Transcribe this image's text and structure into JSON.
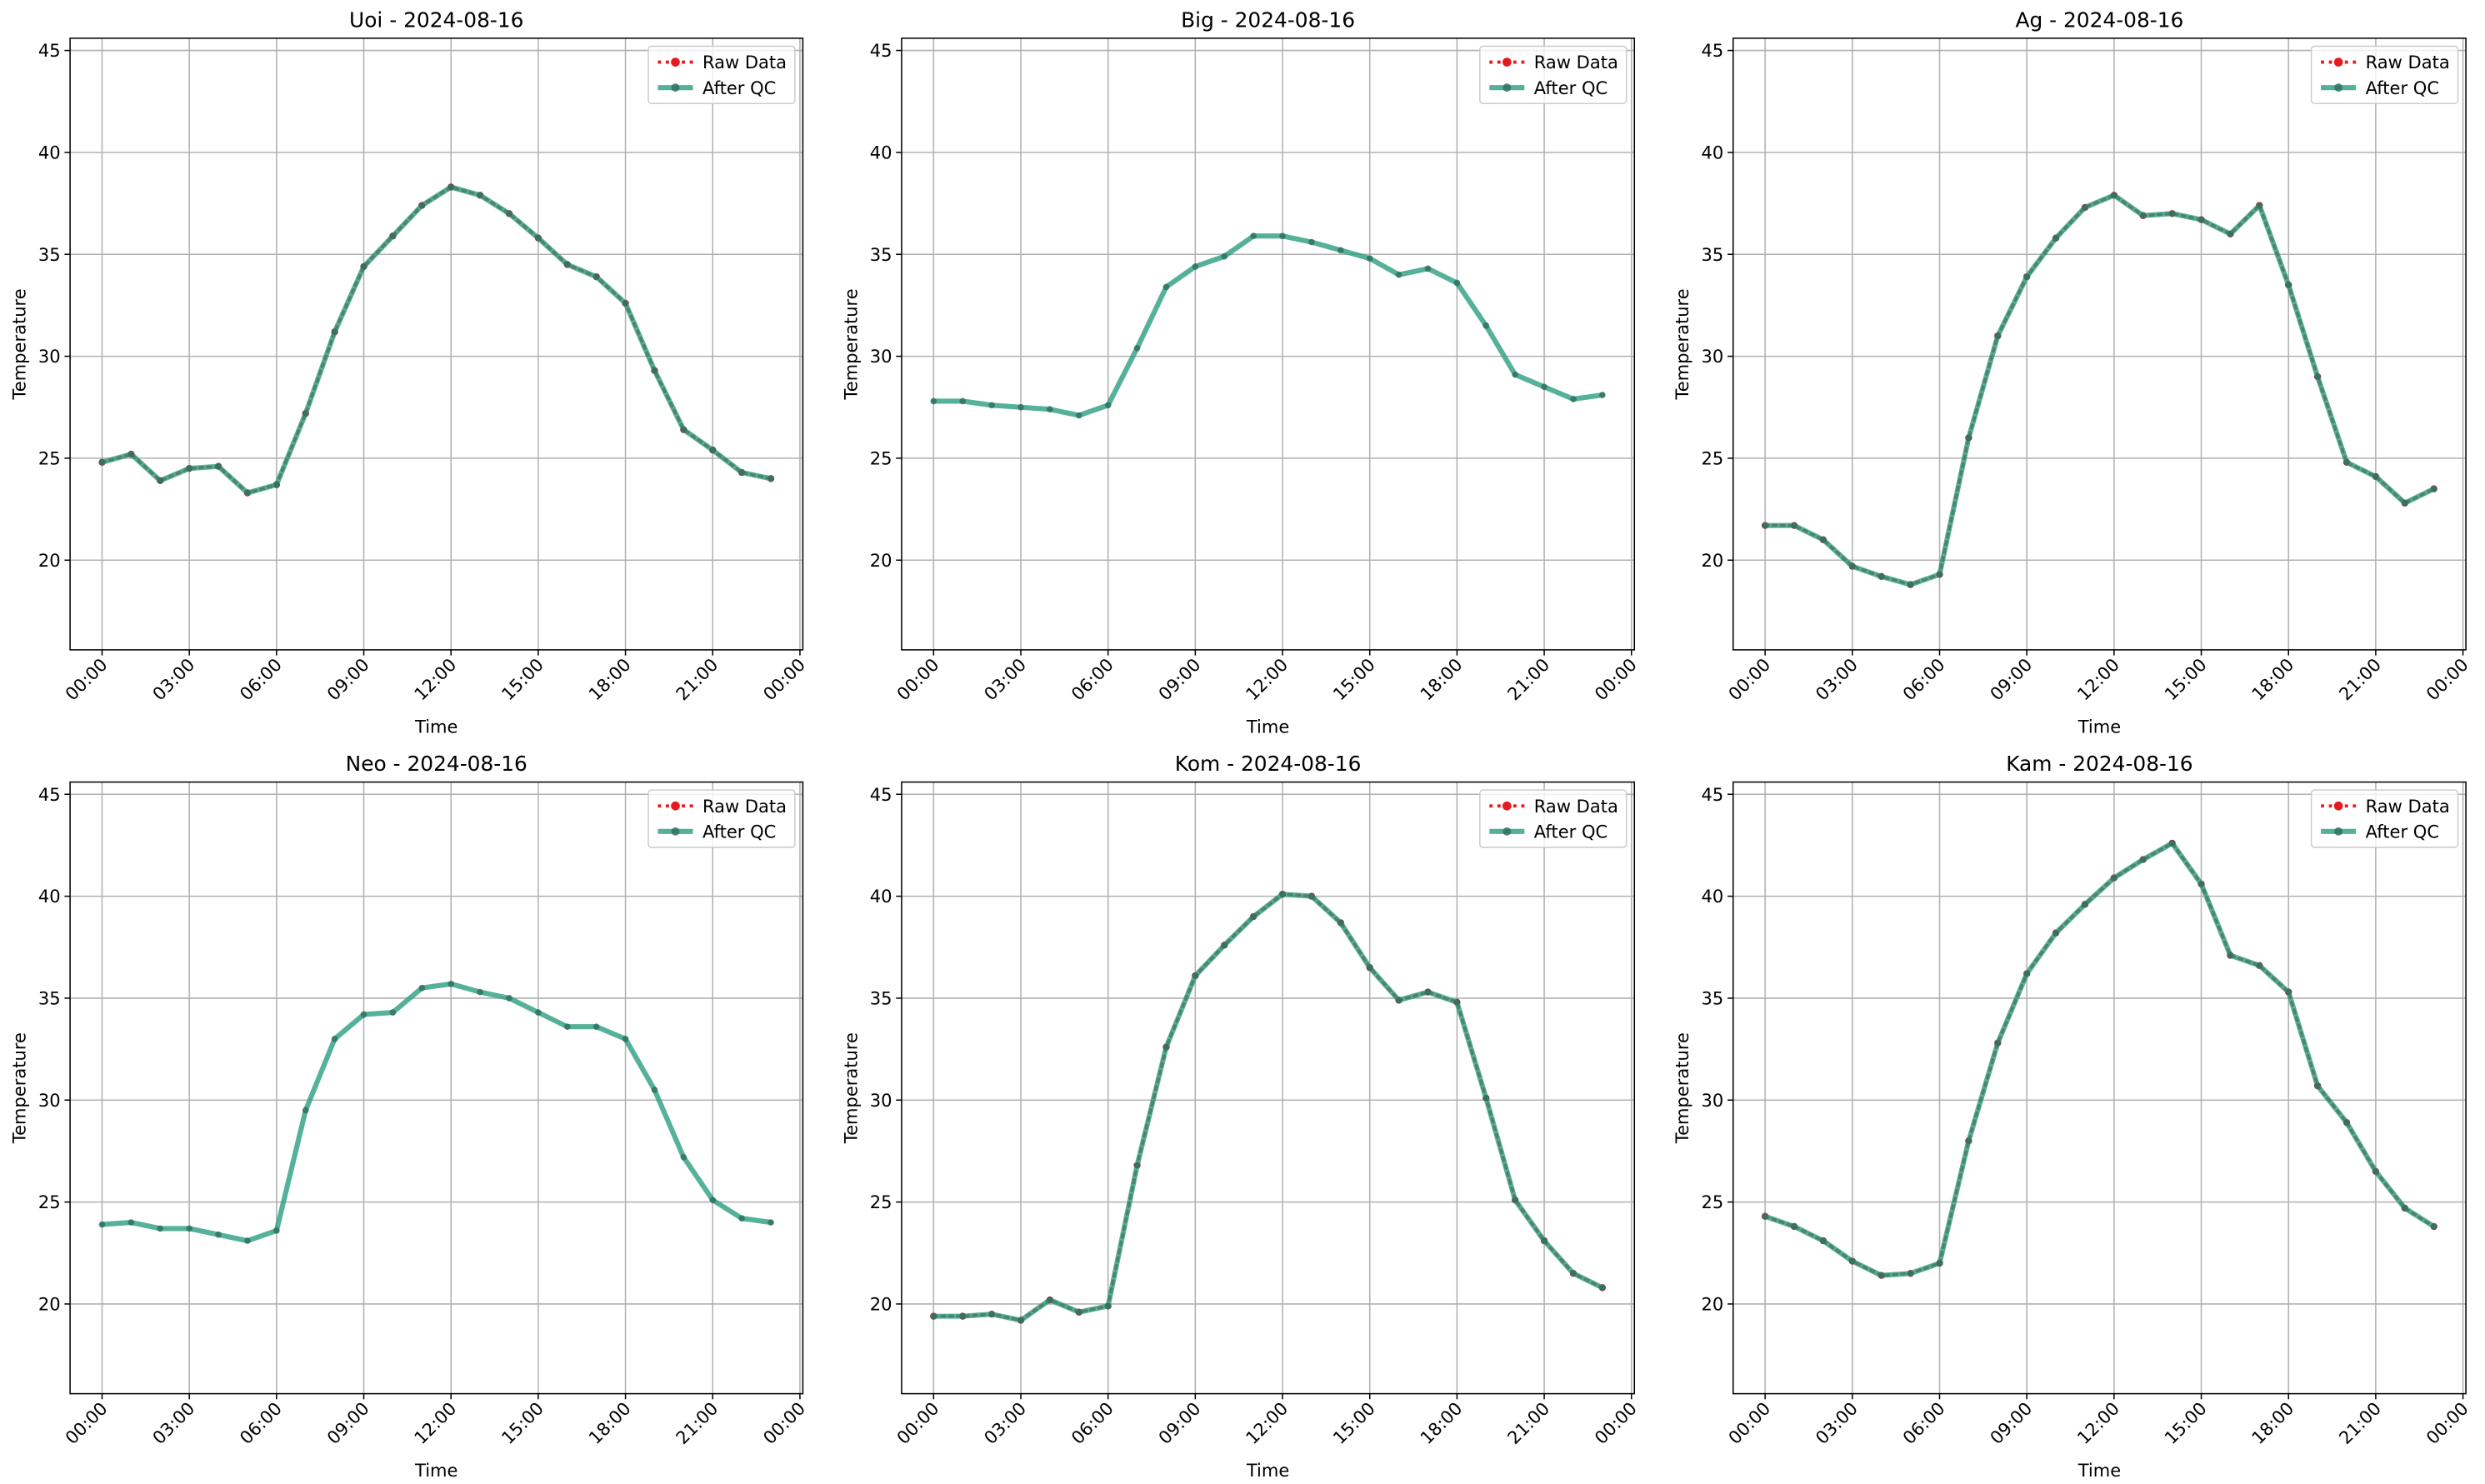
{
  "chart_data": [
    {
      "type": "line",
      "title": "Uoi - 2024-08-16",
      "xlabel": "Time",
      "ylabel": "Temperature",
      "x": [
        0,
        1,
        2,
        3,
        4,
        5,
        6,
        7,
        8,
        9,
        10,
        11,
        12,
        13,
        14,
        15,
        16,
        17,
        18,
        19,
        20,
        21,
        22,
        23
      ],
      "series": [
        {
          "name": "Raw Data",
          "color": "#e41a1c",
          "values": [
            24.8,
            25.2,
            23.9,
            24.5,
            24.6,
            23.3,
            23.7,
            27.2,
            31.2,
            34.4,
            35.9,
            37.4,
            38.3,
            37.9,
            37.0,
            35.8,
            34.5,
            33.9,
            32.6,
            29.3,
            26.4,
            25.4,
            24.3,
            24.0
          ]
        },
        {
          "name": "After QC",
          "color": "#2a9d7f",
          "values": [
            24.8,
            25.2,
            23.9,
            24.5,
            24.6,
            23.3,
            23.7,
            27.2,
            31.2,
            34.4,
            35.9,
            37.4,
            38.3,
            37.9,
            37.0,
            35.8,
            34.5,
            33.9,
            32.6,
            29.3,
            26.4,
            25.4,
            24.3,
            24.0
          ]
        }
      ],
      "xlim": [
        -1.1,
        24.1
      ],
      "ylim": [
        15.6,
        45.6
      ],
      "xticks": [
        {
          "value": 0,
          "label": "00:00"
        },
        {
          "value": 3,
          "label": "03:00"
        },
        {
          "value": 6,
          "label": "06:00"
        },
        {
          "value": 9,
          "label": "09:00"
        },
        {
          "value": 12,
          "label": "12:00"
        },
        {
          "value": 15,
          "label": "15:00"
        },
        {
          "value": 18,
          "label": "18:00"
        },
        {
          "value": 21,
          "label": "21:00"
        },
        {
          "value": 24,
          "label": "00:00"
        }
      ],
      "yticks": [
        20,
        25,
        30,
        35,
        40,
        45
      ],
      "grid": true,
      "legend": "upper right"
    },
    {
      "type": "line",
      "title": "Big - 2024-08-16",
      "xlabel": "Time",
      "ylabel": "Temperature",
      "x": [
        0,
        1,
        2,
        3,
        4,
        5,
        6,
        7,
        8,
        9,
        10,
        11,
        12,
        13,
        14,
        15,
        16,
        17,
        18,
        19,
        20,
        21,
        22,
        23
      ],
      "series": [
        {
          "name": "Raw Data",
          "color": "#e41a1c",
          "values": [
            null,
            null,
            null,
            null,
            null,
            null,
            null,
            null,
            null,
            null,
            null,
            null,
            null,
            null,
            null,
            null,
            null,
            null,
            null,
            null,
            null,
            null,
            null,
            null
          ]
        },
        {
          "name": "After QC",
          "color": "#2a9d7f",
          "values": [
            27.8,
            27.8,
            27.6,
            27.5,
            27.4,
            27.1,
            27.6,
            30.4,
            33.4,
            34.4,
            34.9,
            35.9,
            35.9,
            35.6,
            35.2,
            34.8,
            34.0,
            34.3,
            33.6,
            31.5,
            29.1,
            28.5,
            27.9,
            28.1
          ]
        }
      ],
      "xlim": [
        -1.1,
        24.1
      ],
      "ylim": [
        15.6,
        45.6
      ],
      "xticks": [
        {
          "value": 0,
          "label": "00:00"
        },
        {
          "value": 3,
          "label": "03:00"
        },
        {
          "value": 6,
          "label": "06:00"
        },
        {
          "value": 9,
          "label": "09:00"
        },
        {
          "value": 12,
          "label": "12:00"
        },
        {
          "value": 15,
          "label": "15:00"
        },
        {
          "value": 18,
          "label": "18:00"
        },
        {
          "value": 21,
          "label": "21:00"
        },
        {
          "value": 24,
          "label": "00:00"
        }
      ],
      "yticks": [
        20,
        25,
        30,
        35,
        40,
        45
      ],
      "grid": true,
      "legend": "upper right"
    },
    {
      "type": "line",
      "title": "Ag - 2024-08-16",
      "xlabel": "Time",
      "ylabel": "Temperature",
      "x": [
        0,
        1,
        2,
        3,
        4,
        5,
        6,
        7,
        8,
        9,
        10,
        11,
        12,
        13,
        14,
        15,
        16,
        17,
        18,
        19,
        20,
        21,
        22,
        23
      ],
      "series": [
        {
          "name": "Raw Data",
          "color": "#e41a1c",
          "values": [
            21.7,
            21.7,
            21.0,
            19.7,
            19.2,
            18.8,
            19.3,
            26.0,
            31.0,
            33.9,
            35.8,
            37.3,
            37.9,
            36.9,
            37.0,
            36.7,
            36.0,
            37.4,
            33.5,
            29.0,
            24.8,
            24.1,
            22.8,
            23.5
          ]
        },
        {
          "name": "After QC",
          "color": "#2a9d7f",
          "values": [
            21.7,
            21.7,
            21.0,
            19.7,
            19.2,
            18.8,
            19.3,
            26.0,
            31.0,
            33.9,
            35.8,
            37.3,
            37.9,
            36.9,
            37.0,
            36.7,
            36.0,
            37.4,
            33.5,
            29.0,
            24.8,
            24.1,
            22.8,
            23.5
          ]
        }
      ],
      "xlim": [
        -1.1,
        24.1
      ],
      "ylim": [
        15.6,
        45.6
      ],
      "xticks": [
        {
          "value": 0,
          "label": "00:00"
        },
        {
          "value": 3,
          "label": "03:00"
        },
        {
          "value": 6,
          "label": "06:00"
        },
        {
          "value": 9,
          "label": "09:00"
        },
        {
          "value": 12,
          "label": "12:00"
        },
        {
          "value": 15,
          "label": "15:00"
        },
        {
          "value": 18,
          "label": "18:00"
        },
        {
          "value": 21,
          "label": "21:00"
        },
        {
          "value": 24,
          "label": "00:00"
        }
      ],
      "yticks": [
        20,
        25,
        30,
        35,
        40,
        45
      ],
      "grid": true,
      "legend": "upper right"
    },
    {
      "type": "line",
      "title": "Neo - 2024-08-16",
      "xlabel": "Time",
      "ylabel": "Temperature",
      "x": [
        0,
        1,
        2,
        3,
        4,
        5,
        6,
        7,
        8,
        9,
        10,
        11,
        12,
        13,
        14,
        15,
        16,
        17,
        18,
        19,
        20,
        21,
        22,
        23
      ],
      "series": [
        {
          "name": "Raw Data",
          "color": "#e41a1c",
          "values": [
            null,
            null,
            null,
            null,
            null,
            null,
            null,
            null,
            null,
            null,
            null,
            null,
            null,
            null,
            null,
            null,
            null,
            null,
            null,
            null,
            null,
            null,
            null,
            null
          ]
        },
        {
          "name": "After QC",
          "color": "#2a9d7f",
          "values": [
            23.9,
            24.0,
            23.7,
            23.7,
            23.4,
            23.1,
            23.6,
            29.5,
            33.0,
            34.2,
            34.3,
            35.5,
            35.7,
            35.3,
            35.0,
            34.3,
            33.6,
            33.6,
            33.0,
            30.5,
            27.2,
            25.1,
            24.2,
            24.0
          ]
        }
      ],
      "xlim": [
        -1.1,
        24.1
      ],
      "ylim": [
        15.6,
        45.6
      ],
      "xticks": [
        {
          "value": 0,
          "label": "00:00"
        },
        {
          "value": 3,
          "label": "03:00"
        },
        {
          "value": 6,
          "label": "06:00"
        },
        {
          "value": 9,
          "label": "09:00"
        },
        {
          "value": 12,
          "label": "12:00"
        },
        {
          "value": 15,
          "label": "15:00"
        },
        {
          "value": 18,
          "label": "18:00"
        },
        {
          "value": 21,
          "label": "21:00"
        },
        {
          "value": 24,
          "label": "00:00"
        }
      ],
      "yticks": [
        20,
        25,
        30,
        35,
        40,
        45
      ],
      "grid": true,
      "legend": "upper right"
    },
    {
      "type": "line",
      "title": "Kom - 2024-08-16",
      "xlabel": "Time",
      "ylabel": "Temperature",
      "x": [
        0,
        1,
        2,
        3,
        4,
        5,
        6,
        7,
        8,
        9,
        10,
        11,
        12,
        13,
        14,
        15,
        16,
        17,
        18,
        19,
        20,
        21,
        22,
        23
      ],
      "series": [
        {
          "name": "Raw Data",
          "color": "#e41a1c",
          "values": [
            19.4,
            19.4,
            19.5,
            19.2,
            20.2,
            19.6,
            19.9,
            26.8,
            32.6,
            36.1,
            37.6,
            39.0,
            40.1,
            40.0,
            38.7,
            36.5,
            34.9,
            35.3,
            34.8,
            30.1,
            25.1,
            23.1,
            21.5,
            20.8
          ]
        },
        {
          "name": "After QC",
          "color": "#2a9d7f",
          "values": [
            19.4,
            19.4,
            19.5,
            19.2,
            20.2,
            19.6,
            19.9,
            26.8,
            32.6,
            36.1,
            37.6,
            39.0,
            40.1,
            40.0,
            38.7,
            36.5,
            34.9,
            35.3,
            34.8,
            30.1,
            25.1,
            23.1,
            21.5,
            20.8
          ]
        }
      ],
      "xlim": [
        -1.1,
        24.1
      ],
      "ylim": [
        15.6,
        45.6
      ],
      "xticks": [
        {
          "value": 0,
          "label": "00:00"
        },
        {
          "value": 3,
          "label": "03:00"
        },
        {
          "value": 6,
          "label": "06:00"
        },
        {
          "value": 9,
          "label": "09:00"
        },
        {
          "value": 12,
          "label": "12:00"
        },
        {
          "value": 15,
          "label": "15:00"
        },
        {
          "value": 18,
          "label": "18:00"
        },
        {
          "value": 21,
          "label": "21:00"
        },
        {
          "value": 24,
          "label": "00:00"
        }
      ],
      "yticks": [
        20,
        25,
        30,
        35,
        40,
        45
      ],
      "grid": true,
      "legend": "upper right"
    },
    {
      "type": "line",
      "title": "Kam - 2024-08-16",
      "xlabel": "Time",
      "ylabel": "Temperature",
      "x": [
        0,
        1,
        2,
        3,
        4,
        5,
        6,
        7,
        8,
        9,
        10,
        11,
        12,
        13,
        14,
        15,
        16,
        17,
        18,
        19,
        20,
        21,
        22,
        23
      ],
      "series": [
        {
          "name": "Raw Data",
          "color": "#e41a1c",
          "values": [
            24.3,
            23.8,
            23.1,
            22.1,
            21.4,
            21.5,
            22.0,
            28.0,
            32.8,
            36.2,
            38.2,
            39.6,
            40.9,
            41.8,
            42.6,
            40.6,
            37.1,
            36.6,
            35.3,
            30.7,
            28.9,
            26.5,
            24.7,
            23.8
          ]
        },
        {
          "name": "After QC",
          "color": "#2a9d7f",
          "values": [
            24.3,
            23.8,
            23.1,
            22.1,
            21.4,
            21.5,
            22.0,
            28.0,
            32.8,
            36.2,
            38.2,
            39.6,
            40.9,
            41.8,
            42.6,
            40.6,
            37.1,
            36.6,
            35.3,
            30.7,
            28.9,
            26.5,
            24.7,
            23.8
          ]
        }
      ],
      "xlim": [
        -1.1,
        24.1
      ],
      "ylim": [
        15.6,
        45.6
      ],
      "xticks": [
        {
          "value": 0,
          "label": "00:00"
        },
        {
          "value": 3,
          "label": "03:00"
        },
        {
          "value": 6,
          "label": "06:00"
        },
        {
          "value": 9,
          "label": "09:00"
        },
        {
          "value": 12,
          "label": "12:00"
        },
        {
          "value": 15,
          "label": "15:00"
        },
        {
          "value": 18,
          "label": "18:00"
        },
        {
          "value": 21,
          "label": "21:00"
        },
        {
          "value": 24,
          "label": "00:00"
        }
      ],
      "yticks": [
        20,
        25,
        30,
        35,
        40,
        45
      ],
      "grid": true,
      "legend": "upper right"
    }
  ]
}
